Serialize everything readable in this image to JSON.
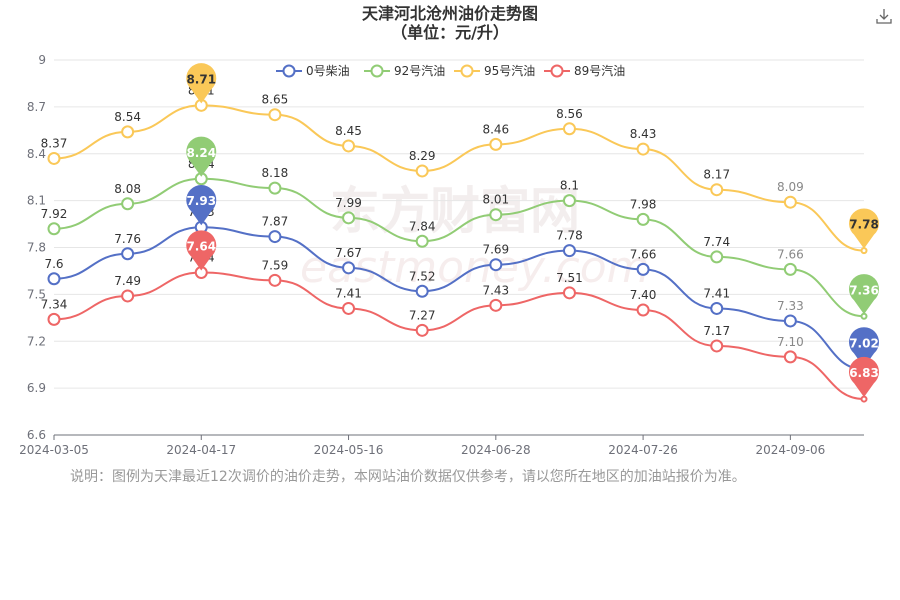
{
  "page": {
    "title_line1": "天津河北沧州油价走势图",
    "title_line2": "（单位：元/升）",
    "note": "说明：图例为天津最近12次调价的油价走势，本网站油价数据仅供参考，请以您所在地区的加油站报价为准。",
    "download_icon": "download-icon",
    "watermark_brand": "东方财富网",
    "watermark_url": "eastmoney.com"
  },
  "chart_data": {
    "type": "line",
    "title": "天津河北沧州油价走势图",
    "subtitle": "（单位：元/升）",
    "ylim": [
      6.6,
      9
    ],
    "y_ticks": [
      "6.6",
      "6.9",
      "7.2",
      "7.5",
      "7.8",
      "8.1",
      "8.4",
      "8.7",
      "9"
    ],
    "x_tick_labels": [
      "2024-03-05",
      "2024-04-17",
      "2024-05-16",
      "2024-06-28",
      "2024-07-26",
      "2024-09-06"
    ],
    "x_tick_index": [
      0,
      2,
      4,
      6,
      8,
      10
    ],
    "grid": true,
    "legend_position": "top-center",
    "series": [
      {
        "name": "0号柴油",
        "color": "#5470c6",
        "values": [
          7.6,
          7.76,
          7.93,
          7.87,
          7.67,
          7.52,
          7.69,
          7.78,
          7.66,
          7.41,
          7.33,
          7.02
        ],
        "labels": [
          "7.6",
          "7.76",
          "7.93",
          "7.87",
          "7.67",
          "7.52",
          "7.69",
          "7.78",
          "7.66",
          "7.41",
          "7.33",
          "7.02"
        ],
        "max_pin_label": "7.93",
        "last_pin_label": "7.02"
      },
      {
        "name": "92号汽油",
        "color": "#91cc75",
        "values": [
          7.92,
          8.08,
          8.24,
          8.18,
          7.99,
          7.84,
          8.01,
          8.1,
          7.98,
          7.74,
          7.66,
          7.36
        ],
        "labels": [
          "7.92",
          "8.08",
          "8.24",
          "8.18",
          "7.99",
          "7.84",
          "8.01",
          "8.1",
          "7.98",
          "7.74",
          "7.66",
          "7.36"
        ],
        "max_pin_label": "8.24",
        "last_pin_label": "7.36"
      },
      {
        "name": "95号汽油",
        "color": "#fac858",
        "values": [
          8.37,
          8.54,
          8.71,
          8.65,
          8.45,
          8.29,
          8.46,
          8.56,
          8.43,
          8.17,
          8.09,
          7.78
        ],
        "labels": [
          "8.37",
          "8.54",
          "8.71",
          "8.65",
          "8.45",
          "8.29",
          "8.46",
          "8.56",
          "8.43",
          "8.17",
          "8.09",
          "7.78"
        ],
        "max_pin_label": "8.71",
        "last_pin_label": "7.78"
      },
      {
        "name": "89号汽油",
        "color": "#ee6666",
        "values": [
          7.34,
          7.49,
          7.64,
          7.59,
          7.41,
          7.27,
          7.43,
          7.51,
          7.4,
          7.17,
          7.1,
          6.83
        ],
        "labels": [
          "7.34",
          "7.49",
          "7.64",
          "7.59",
          "7.41",
          "7.27",
          "7.43",
          "7.51",
          "7.40",
          "7.17",
          "7.10",
          "6.83"
        ],
        "max_pin_label": "7.64",
        "last_pin_label": "6.83"
      }
    ]
  }
}
